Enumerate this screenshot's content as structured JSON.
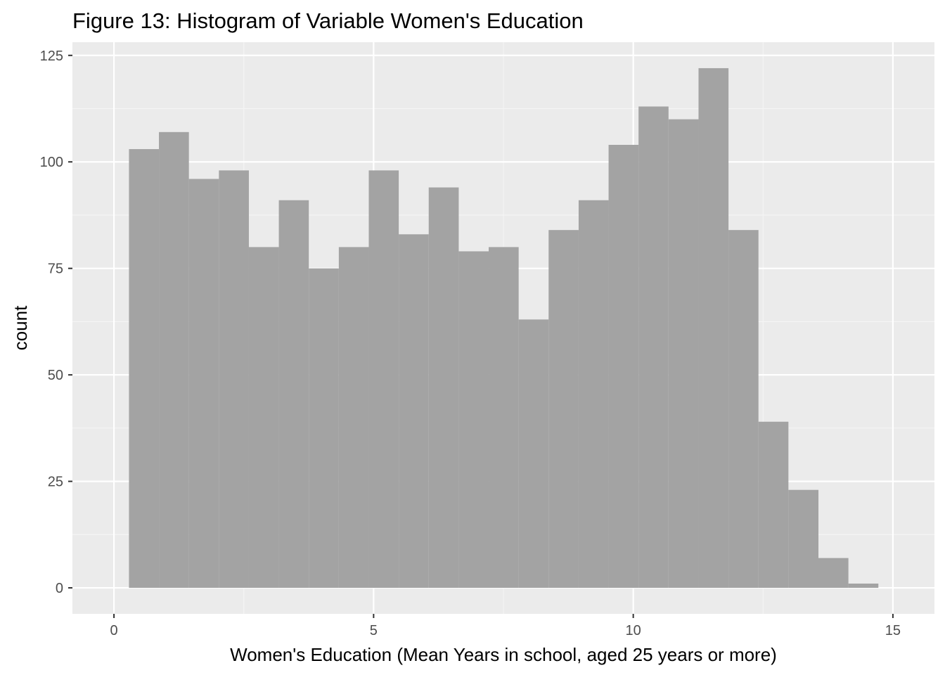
{
  "chart_data": {
    "type": "bar",
    "title": "Figure 13: Histogram of Variable Women's Education",
    "xlabel": "Women's Education (Mean Years in school, aged 25 years or more)",
    "ylabel": "count",
    "xlim": [
      -0.8,
      15.8
    ],
    "ylim": [
      -6.1,
      128.1
    ],
    "x_ticks": [
      0,
      5,
      10,
      15
    ],
    "y_ticks": [
      0,
      25,
      50,
      75,
      100,
      125
    ],
    "grid": true,
    "legend": "none",
    "bin_width": 0.577,
    "bins": [
      {
        "start": 0.289,
        "end": 0.866,
        "count": 103
      },
      {
        "start": 0.866,
        "end": 1.443,
        "count": 107
      },
      {
        "start": 1.443,
        "end": 2.021,
        "count": 96
      },
      {
        "start": 2.021,
        "end": 2.598,
        "count": 98
      },
      {
        "start": 2.598,
        "end": 3.175,
        "count": 80
      },
      {
        "start": 3.175,
        "end": 3.752,
        "count": 91
      },
      {
        "start": 3.752,
        "end": 4.33,
        "count": 75
      },
      {
        "start": 4.33,
        "end": 4.907,
        "count": 80
      },
      {
        "start": 4.907,
        "end": 5.484,
        "count": 98
      },
      {
        "start": 5.484,
        "end": 6.061,
        "count": 83
      },
      {
        "start": 6.061,
        "end": 6.639,
        "count": 94
      },
      {
        "start": 6.639,
        "end": 7.216,
        "count": 79
      },
      {
        "start": 7.216,
        "end": 7.793,
        "count": 80
      },
      {
        "start": 7.793,
        "end": 8.37,
        "count": 63
      },
      {
        "start": 8.37,
        "end": 8.948,
        "count": 84
      },
      {
        "start": 8.948,
        "end": 9.525,
        "count": 91
      },
      {
        "start": 9.525,
        "end": 10.102,
        "count": 104
      },
      {
        "start": 10.102,
        "end": 10.679,
        "count": 113
      },
      {
        "start": 10.679,
        "end": 11.257,
        "count": 110
      },
      {
        "start": 11.257,
        "end": 11.834,
        "count": 122
      },
      {
        "start": 11.834,
        "end": 12.411,
        "count": 84
      },
      {
        "start": 12.411,
        "end": 12.988,
        "count": 39
      },
      {
        "start": 12.988,
        "end": 13.566,
        "count": 23
      },
      {
        "start": 13.566,
        "end": 14.143,
        "count": 7
      },
      {
        "start": 14.143,
        "end": 14.72,
        "count": 1
      }
    ],
    "colors": {
      "panel": "#ebebeb",
      "grid_major": "#ffffff",
      "grid_minor": "#f5f5f5",
      "bar": "#a0a0a0",
      "tick": "#333333"
    }
  }
}
